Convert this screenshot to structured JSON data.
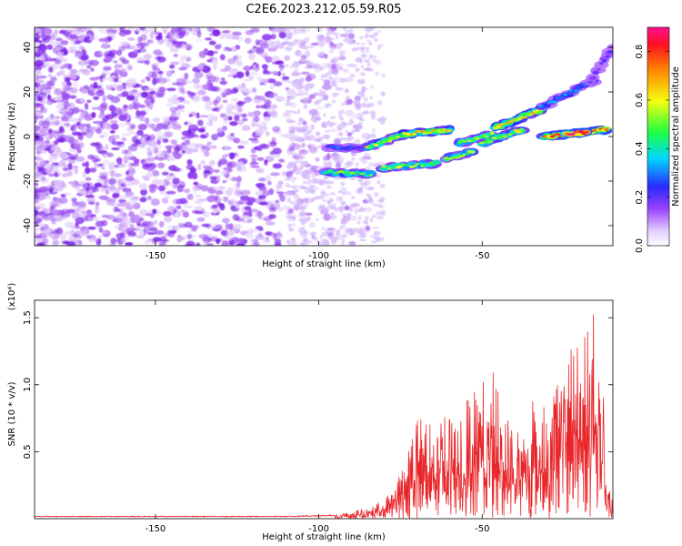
{
  "title": "C2E6.2023.212.05.59.R05",
  "chart_data": [
    {
      "type": "heatmap",
      "xlabel": "Height of straight line (km)",
      "ylabel": "Frequency (Hz)",
      "xlim": [
        -187,
        -10
      ],
      "ylim": [
        -49,
        49
      ],
      "xticks": [
        -150,
        -100,
        -50
      ],
      "yticks": [
        -40,
        -20,
        0,
        20,
        40
      ],
      "colorbar": {
        "label": "Normalized spectral amplitude",
        "range": [
          0,
          0.9
        ],
        "ticks": [
          0.0,
          0.2,
          0.4,
          0.6,
          0.8
        ]
      },
      "features": [
        {
          "from": [
            -98,
            -16
          ],
          "to": [
            -84,
            -17
          ],
          "level": 0.45
        },
        {
          "from": [
            -80,
            -14
          ],
          "to": [
            -64,
            -12
          ],
          "level": 0.5
        },
        {
          "from": [
            -97,
            -5
          ],
          "to": [
            -87,
            -5
          ],
          "level": 0.25
        },
        {
          "from": [
            -85,
            -5
          ],
          "to": [
            -74,
            1
          ],
          "level": 0.55
        },
        {
          "from": [
            -74,
            1
          ],
          "to": [
            -60,
            3
          ],
          "level": 0.6
        },
        {
          "from": [
            -61,
            -10
          ],
          "to": [
            -53,
            -7
          ],
          "level": 0.5
        },
        {
          "from": [
            -57,
            -3
          ],
          "to": [
            -47,
            1
          ],
          "level": 0.5
        },
        {
          "from": [
            -50,
            -3
          ],
          "to": [
            -38,
            3
          ],
          "level": 0.55
        },
        {
          "from": [
            -46,
            4
          ],
          "to": [
            -32,
            12
          ],
          "level": 0.6
        },
        {
          "from": [
            -32,
            13
          ],
          "to": [
            -16,
            25
          ],
          "level": 0.3
        },
        {
          "from": [
            -17,
            25
          ],
          "to": [
            -10,
            40
          ],
          "level": 0.2
        },
        {
          "from": [
            -31,
            0
          ],
          "to": [
            -12,
            3
          ],
          "level": 0.7
        },
        {
          "from": [
            -24,
            1
          ],
          "to": [
            -18,
            2
          ],
          "level": 0.9
        }
      ]
    },
    {
      "type": "line",
      "xlabel": "Height of straight line (km)",
      "ylabel": "SNR (10 * v/v)",
      "y_multiplier": "(x10⁴)",
      "xlim": [
        -187,
        -10
      ],
      "ylim": [
        0,
        1.63
      ],
      "xticks": [
        -150,
        -100,
        -50
      ],
      "yticks": [
        0.5,
        1.0,
        1.5
      ],
      "ytick_labels": [
        "0.5",
        "1.0",
        "1.5"
      ],
      "series": [
        {
          "color": "#e8262a",
          "envelope_x": [
            -187,
            -110,
            -95,
            -85,
            -80,
            -75,
            -70,
            -65,
            -60,
            -55,
            -50,
            -46,
            -44,
            -40,
            -35,
            -30,
            -25,
            -22,
            -20,
            -18,
            -15,
            -13,
            -12,
            -10
          ],
          "envelope_y": [
            0.02,
            0.02,
            0.03,
            0.08,
            0.15,
            0.35,
            0.8,
            0.75,
            0.95,
            0.9,
            1.05,
            1.1,
            0.85,
            0.7,
            0.88,
            1.0,
            1.2,
            1.45,
            1.63,
            1.55,
            1.6,
            1.0,
            0.3,
            0.12
          ]
        }
      ]
    }
  ]
}
